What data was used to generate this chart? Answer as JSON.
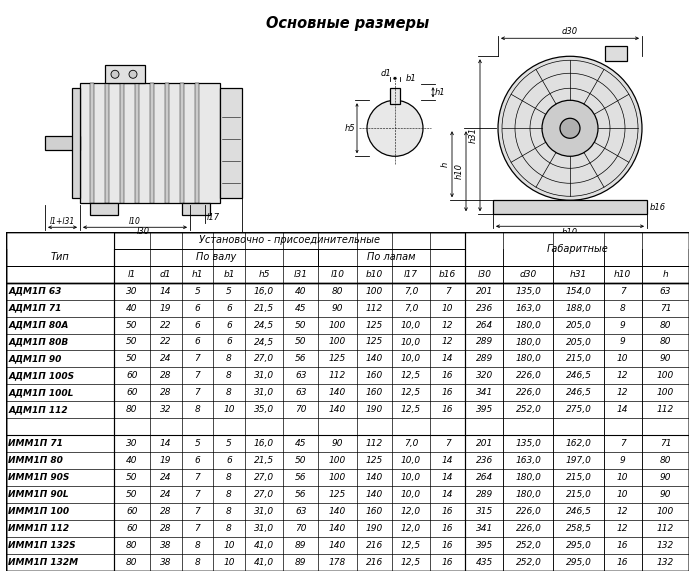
{
  "title": "Основные размеры",
  "col_labels": [
    "l1",
    "d1",
    "h1",
    "b1",
    "h5",
    "l31",
    "l10",
    "b10",
    "l17",
    "b16",
    "l30",
    "d30",
    "h31",
    "h10",
    "h"
  ],
  "adm_rows": [
    [
      "АДМ1П 63",
      "30",
      "14",
      "5",
      "5",
      "16,0",
      "40",
      "80",
      "100",
      "7,0",
      "7",
      "201",
      "135,0",
      "154,0",
      "7",
      "63"
    ],
    [
      "АДМ1П 71",
      "40",
      "19",
      "6",
      "6",
      "21,5",
      "45",
      "90",
      "112",
      "7,0",
      "10",
      "236",
      "163,0",
      "188,0",
      "8",
      "71"
    ],
    [
      "АДМ1П 80А",
      "50",
      "22",
      "6",
      "6",
      "24,5",
      "50",
      "100",
      "125",
      "10,0",
      "12",
      "264",
      "180,0",
      "205,0",
      "9",
      "80"
    ],
    [
      "АДМ1П 80В",
      "50",
      "22",
      "6",
      "6",
      "24,5",
      "50",
      "100",
      "125",
      "10,0",
      "12",
      "289",
      "180,0",
      "205,0",
      "9",
      "80"
    ],
    [
      "АДМ1П 90",
      "50",
      "24",
      "7",
      "8",
      "27,0",
      "56",
      "125",
      "140",
      "10,0",
      "14",
      "289",
      "180,0",
      "215,0",
      "10",
      "90"
    ],
    [
      "АДМ1П 100S",
      "60",
      "28",
      "7",
      "8",
      "31,0",
      "63",
      "112",
      "160",
      "12,5",
      "16",
      "320",
      "226,0",
      "246,5",
      "12",
      "100"
    ],
    [
      "АДМ1П 100L",
      "60",
      "28",
      "7",
      "8",
      "31,0",
      "63",
      "140",
      "160",
      "12,5",
      "16",
      "341",
      "226,0",
      "246,5",
      "12",
      "100"
    ],
    [
      "АДМ1П 112",
      "80",
      "32",
      "8",
      "10",
      "35,0",
      "70",
      "140",
      "190",
      "12,5",
      "16",
      "395",
      "252,0",
      "275,0",
      "14",
      "112"
    ]
  ],
  "imm_rows": [
    [
      "ИММ1П 71",
      "30",
      "14",
      "5",
      "5",
      "16,0",
      "45",
      "90",
      "112",
      "7,0",
      "7",
      "201",
      "135,0",
      "162,0",
      "7",
      "71"
    ],
    [
      "ИММ1П 80",
      "40",
      "19",
      "6",
      "6",
      "21,5",
      "50",
      "100",
      "125",
      "10,0",
      "14",
      "236",
      "163,0",
      "197,0",
      "9",
      "80"
    ],
    [
      "ИММ1П 90S",
      "50",
      "24",
      "7",
      "8",
      "27,0",
      "56",
      "100",
      "140",
      "10,0",
      "14",
      "264",
      "180,0",
      "215,0",
      "10",
      "90"
    ],
    [
      "ИММ1П 90L",
      "50",
      "24",
      "7",
      "8",
      "27,0",
      "56",
      "125",
      "140",
      "10,0",
      "14",
      "289",
      "180,0",
      "215,0",
      "10",
      "90"
    ],
    [
      "ИММ1П 100",
      "60",
      "28",
      "7",
      "8",
      "31,0",
      "63",
      "140",
      "160",
      "12,0",
      "16",
      "315",
      "226,0",
      "246,5",
      "12",
      "100"
    ],
    [
      "ИММ1П 112",
      "60",
      "28",
      "7",
      "8",
      "31,0",
      "70",
      "140",
      "190",
      "12,0",
      "16",
      "341",
      "226,0",
      "258,5",
      "12",
      "112"
    ],
    [
      "ИММ1П 132S",
      "80",
      "38",
      "8",
      "10",
      "41,0",
      "89",
      "140",
      "216",
      "12,5",
      "16",
      "395",
      "252,0",
      "295,0",
      "16",
      "132"
    ],
    [
      "ИММ1П 132М",
      "80",
      "38",
      "8",
      "10",
      "41,0",
      "89",
      "178",
      "216",
      "12,5",
      "16",
      "435",
      "252,0",
      "295,0",
      "16",
      "132"
    ]
  ],
  "bg_color": "#ffffff",
  "text_color": "#000000"
}
